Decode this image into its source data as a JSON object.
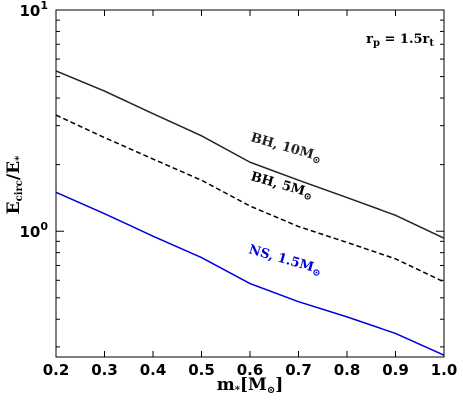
{
  "chart_data": {
    "type": "line",
    "x": [
      0.2,
      0.3,
      0.4,
      0.5,
      0.6,
      0.7,
      0.8,
      0.9,
      1.0
    ],
    "xlim": [
      0.2,
      1.0
    ],
    "ylim": [
      0.27,
      10
    ],
    "yscale": "log",
    "xticks": [
      "0.2",
      "0.3",
      "0.4",
      "0.5",
      "0.6",
      "0.7",
      "0.8",
      "0.9",
      "1.0"
    ],
    "yticks": [
      {
        "value": 1,
        "base": "10",
        "exp": "0"
      },
      {
        "value": 10,
        "base": "10",
        "exp": "1"
      }
    ],
    "xlabel": {
      "main": "m",
      "sub": "*",
      "unit": "[M",
      "unit_sub": "⊙",
      "unit_close": "]"
    },
    "ylabel": {
      "main": "E",
      "sub": "circ",
      "sep": "/E",
      "sub2": "*"
    },
    "annotation": {
      "main": "r",
      "sub": "p",
      "eq": " = 1.5r",
      "sub2": "t"
    },
    "grid": false,
    "series": [
      {
        "name": "BH, 10M⊙",
        "label_main": "BH, 10M",
        "label_sub": "⊙",
        "color": "#222222",
        "style": "solid",
        "values": [
          5.3,
          4.3,
          3.4,
          2.7,
          2.05,
          1.7,
          1.42,
          1.18,
          0.93
        ]
      },
      {
        "name": "BH, 5M⊙",
        "label_main": "BH, 5M",
        "label_sub": "⊙",
        "color": "#000000",
        "style": "dashed",
        "values": [
          3.35,
          2.65,
          2.12,
          1.7,
          1.3,
          1.05,
          0.89,
          0.75,
          0.59
        ]
      },
      {
        "name": "NS, 1.5M⊙",
        "label_main": "NS, 1.5M",
        "label_sub": "⊙",
        "color": "#0000dd",
        "style": "solid",
        "values": [
          1.5,
          1.2,
          0.95,
          0.76,
          0.58,
          0.48,
          0.41,
          0.345,
          0.275
        ]
      }
    ]
  }
}
